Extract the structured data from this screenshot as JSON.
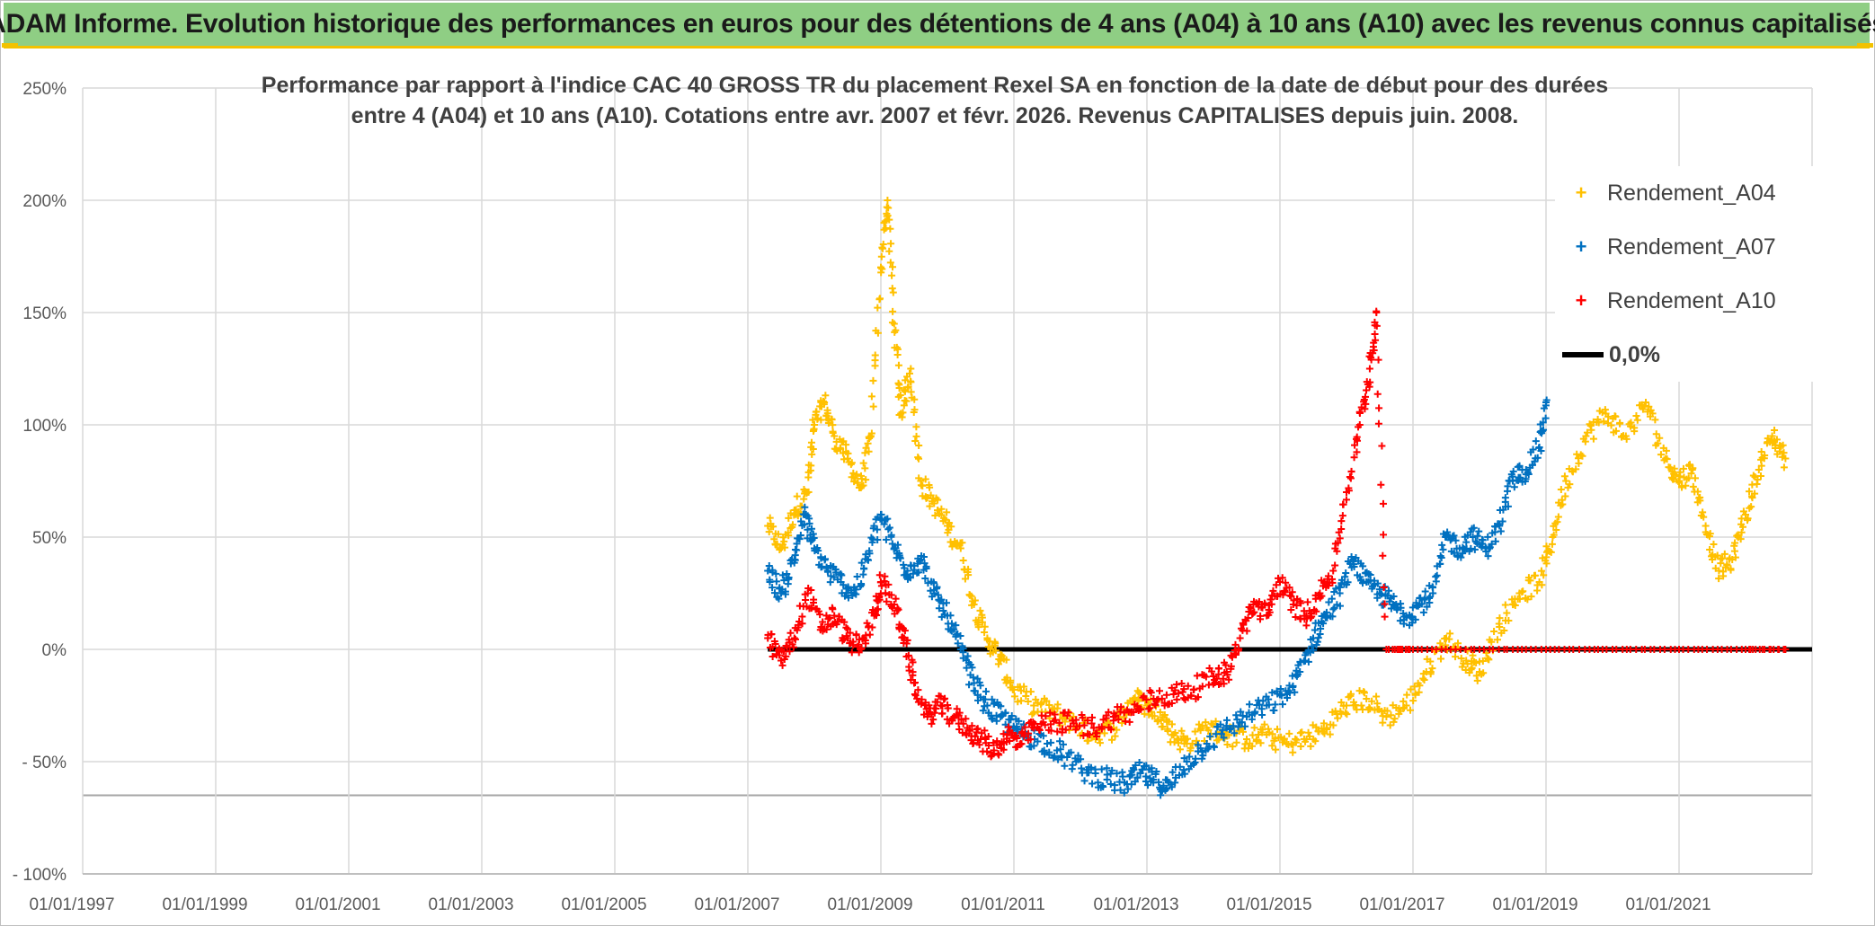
{
  "banner": {
    "title": "ADAM Informe. Evolution historique des performances en euros pour des détentions de 4 ans (A04) à 10 ans (A10) avec les revenus connus capitalisés"
  },
  "chart_data": {
    "type": "scatter",
    "title_line1": "Performance par rapport à l'indice CAC 40 GROSS TR  du placement Rexel SA en fonction de la date de début pour des durées",
    "title_line2": "entre 4 (A04) et 10 ans (A10). Cotations entre avr. 2007 et févr. 2026. Revenus CAPITALISES depuis juin. 2008.",
    "xlim": [
      1997.0,
      2023.0
    ],
    "ylim": [
      -100,
      250
    ],
    "y_ticks": [
      250,
      200,
      150,
      100,
      50,
      0,
      -50,
      -100
    ],
    "y_tick_labels": [
      "250%",
      "200%",
      "150%",
      "100%",
      "50%",
      "0%",
      "- 50%",
      "- 100%"
    ],
    "x_ticks": [
      1997,
      1999,
      2001,
      2003,
      2005,
      2007,
      2009,
      2011,
      2013,
      2015,
      2017,
      2019,
      2021
    ],
    "x_tick_labels": [
      "01/01/1997",
      "01/01/1999",
      "01/01/2001",
      "01/01/2003",
      "01/01/2005",
      "01/01/2007",
      "01/01/2009",
      "01/01/2011",
      "01/01/2013",
      "01/01/2015",
      "01/01/2017",
      "01/01/2019",
      "01/01/2021"
    ],
    "extra_hline": -65,
    "legend_position": "top-right",
    "series": [
      {
        "name": "Rendement_A04",
        "color": "#ffc000",
        "points": [
          [
            2007.3,
            55
          ],
          [
            2007.5,
            45
          ],
          [
            2007.7,
            62
          ],
          [
            2007.9,
            70
          ],
          [
            2008.0,
            100
          ],
          [
            2008.15,
            110
          ],
          [
            2008.3,
            95
          ],
          [
            2008.5,
            85
          ],
          [
            2008.7,
            72
          ],
          [
            2008.85,
            95
          ],
          [
            2009.0,
            170
          ],
          [
            2009.1,
            200
          ],
          [
            2009.2,
            145
          ],
          [
            2009.3,
            105
          ],
          [
            2009.45,
            125
          ],
          [
            2009.6,
            75
          ],
          [
            2009.8,
            65
          ],
          [
            2010.0,
            55
          ],
          [
            2010.2,
            45
          ],
          [
            2010.4,
            20
          ],
          [
            2010.6,
            5
          ],
          [
            2010.8,
            -5
          ],
          [
            2011.0,
            -18
          ],
          [
            2011.3,
            -25
          ],
          [
            2011.6,
            -28
          ],
          [
            2011.9,
            -33
          ],
          [
            2012.2,
            -38
          ],
          [
            2012.5,
            -35
          ],
          [
            2012.8,
            -22
          ],
          [
            2013.0,
            -25
          ],
          [
            2013.2,
            -28
          ],
          [
            2013.4,
            -38
          ],
          [
            2013.6,
            -42
          ],
          [
            2013.9,
            -35
          ],
          [
            2014.2,
            -38
          ],
          [
            2014.5,
            -40
          ],
          [
            2014.8,
            -38
          ],
          [
            2015.1,
            -42
          ],
          [
            2015.4,
            -40
          ],
          [
            2015.7,
            -35
          ],
          [
            2016.0,
            -25
          ],
          [
            2016.3,
            -22
          ],
          [
            2016.6,
            -30
          ],
          [
            2016.9,
            -25
          ],
          [
            2017.2,
            -10
          ],
          [
            2017.5,
            5
          ],
          [
            2017.8,
            -5
          ],
          [
            2018.0,
            -10
          ],
          [
            2018.3,
            10
          ],
          [
            2018.6,
            25
          ],
          [
            2018.9,
            30
          ],
          [
            2019.1,
            50
          ],
          [
            2019.3,
            75
          ],
          [
            2019.6,
            95
          ],
          [
            2019.9,
            105
          ],
          [
            2020.2,
            95
          ],
          [
            2020.5,
            110
          ],
          [
            2020.8,
            85
          ],
          [
            2021.0,
            75
          ],
          [
            2021.2,
            80
          ],
          [
            2021.4,
            55
          ],
          [
            2021.6,
            35
          ],
          [
            2021.8,
            40
          ],
          [
            2022.0,
            60
          ],
          [
            2022.2,
            80
          ],
          [
            2022.4,
            95
          ],
          [
            2022.6,
            85
          ]
        ]
      },
      {
        "name": "Rendement_A07",
        "color": "#0070c0",
        "points": [
          [
            2007.3,
            35
          ],
          [
            2007.5,
            25
          ],
          [
            2007.7,
            40
          ],
          [
            2007.85,
            60
          ],
          [
            2008.0,
            45
          ],
          [
            2008.2,
            35
          ],
          [
            2008.4,
            30
          ],
          [
            2008.6,
            25
          ],
          [
            2008.8,
            40
          ],
          [
            2009.0,
            60
          ],
          [
            2009.2,
            45
          ],
          [
            2009.4,
            35
          ],
          [
            2009.6,
            40
          ],
          [
            2009.8,
            25
          ],
          [
            2010.0,
            15
          ],
          [
            2010.2,
            0
          ],
          [
            2010.4,
            -15
          ],
          [
            2010.6,
            -25
          ],
          [
            2010.8,
            -30
          ],
          [
            2011.0,
            -35
          ],
          [
            2011.2,
            -38
          ],
          [
            2011.5,
            -42
          ],
          [
            2011.8,
            -48
          ],
          [
            2012.1,
            -55
          ],
          [
            2012.4,
            -58
          ],
          [
            2012.7,
            -60
          ],
          [
            2012.9,
            -55
          ],
          [
            2013.1,
            -58
          ],
          [
            2013.3,
            -62
          ],
          [
            2013.6,
            -50
          ],
          [
            2013.9,
            -42
          ],
          [
            2014.2,
            -35
          ],
          [
            2014.5,
            -30
          ],
          [
            2014.8,
            -25
          ],
          [
            2015.1,
            -20
          ],
          [
            2015.3,
            -10
          ],
          [
            2015.5,
            5
          ],
          [
            2015.7,
            15
          ],
          [
            2015.9,
            25
          ],
          [
            2016.1,
            40
          ],
          [
            2016.3,
            30
          ],
          [
            2016.5,
            25
          ],
          [
            2016.7,
            20
          ],
          [
            2016.9,
            15
          ],
          [
            2017.1,
            20
          ],
          [
            2017.3,
            25
          ],
          [
            2017.5,
            50
          ],
          [
            2017.7,
            45
          ],
          [
            2017.9,
            50
          ],
          [
            2018.1,
            45
          ],
          [
            2018.3,
            55
          ],
          [
            2018.5,
            75
          ],
          [
            2018.7,
            80
          ],
          [
            2018.9,
            90
          ],
          [
            2019.0,
            110
          ]
        ]
      },
      {
        "name": "Rendement_A10",
        "color": "#ff0000",
        "points": [
          [
            2007.3,
            5
          ],
          [
            2007.5,
            -5
          ],
          [
            2007.7,
            5
          ],
          [
            2007.9,
            25
          ],
          [
            2008.1,
            10
          ],
          [
            2008.3,
            15
          ],
          [
            2008.5,
            5
          ],
          [
            2008.7,
            0
          ],
          [
            2008.9,
            15
          ],
          [
            2009.0,
            30
          ],
          [
            2009.2,
            20
          ],
          [
            2009.35,
            5
          ],
          [
            2009.5,
            -15
          ],
          [
            2009.7,
            -30
          ],
          [
            2009.9,
            -25
          ],
          [
            2010.1,
            -30
          ],
          [
            2010.3,
            -35
          ],
          [
            2010.5,
            -40
          ],
          [
            2010.7,
            -45
          ],
          [
            2010.9,
            -38
          ],
          [
            2011.1,
            -42
          ],
          [
            2011.3,
            -35
          ],
          [
            2011.6,
            -32
          ],
          [
            2011.9,
            -33
          ],
          [
            2012.2,
            -35
          ],
          [
            2012.5,
            -30
          ],
          [
            2012.8,
            -28
          ],
          [
            2013.1,
            -22
          ],
          [
            2013.4,
            -20
          ],
          [
            2013.7,
            -18
          ],
          [
            2014.0,
            -12
          ],
          [
            2014.2,
            -10
          ],
          [
            2014.4,
            5
          ],
          [
            2014.6,
            20
          ],
          [
            2014.8,
            15
          ],
          [
            2015.0,
            30
          ],
          [
            2015.2,
            20
          ],
          [
            2015.4,
            15
          ],
          [
            2015.6,
            25
          ],
          [
            2015.8,
            35
          ],
          [
            2016.0,
            70
          ],
          [
            2016.2,
            100
          ],
          [
            2016.35,
            125
          ],
          [
            2016.45,
            150
          ],
          [
            2016.6,
            0
          ],
          [
            2017.0,
            0
          ],
          [
            2018.0,
            0
          ],
          [
            2019.0,
            0
          ],
          [
            2020.0,
            0
          ],
          [
            2021.0,
            0
          ],
          [
            2022.0,
            0
          ],
          [
            2022.6,
            0
          ]
        ]
      }
    ],
    "reference_line": {
      "name": "0,0%",
      "value": 0,
      "x_range": [
        2007.3,
        2023.0
      ],
      "color": "#000000"
    }
  }
}
